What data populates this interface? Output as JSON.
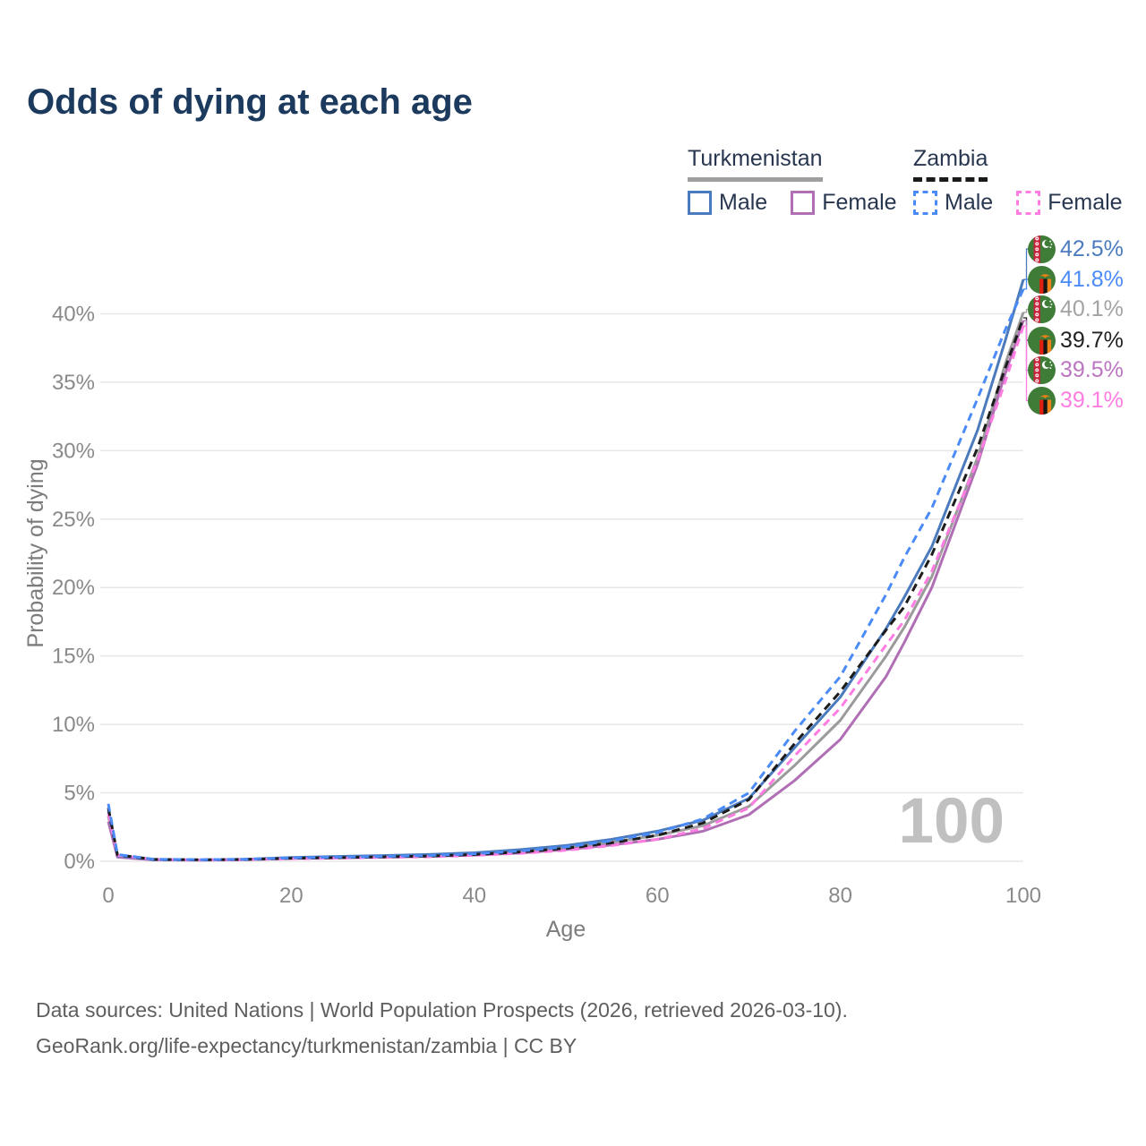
{
  "title": "Odds of dying at each age",
  "legend": {
    "groups": [
      {
        "country": "Turkmenistan",
        "line_style": "solid",
        "underline_color": "#9e9e9e",
        "items": [
          {
            "label": "Male",
            "color": "#4b7bbd",
            "dashed": false
          },
          {
            "label": "Female",
            "color": "#b06fb4",
            "dashed": false
          }
        ]
      },
      {
        "country": "Zambia",
        "line_style": "dashed",
        "underline_color": "#1a1a1a",
        "items": [
          {
            "label": "Male",
            "color": "#4b8bf7",
            "dashed": true
          },
          {
            "label": "Female",
            "color": "#ff7de2",
            "dashed": true
          }
        ]
      }
    ]
  },
  "chart_data": {
    "type": "line",
    "title": "Odds of dying at each age",
    "xlabel": "Age",
    "ylabel": "Probability of dying",
    "xlim": [
      0,
      100
    ],
    "ylim": [
      0,
      45
    ],
    "xticks": [
      0,
      20,
      40,
      60,
      80,
      100
    ],
    "yticks": [
      0,
      5,
      10,
      15,
      20,
      25,
      30,
      35,
      40
    ],
    "ytick_labels": [
      "0%",
      "5%",
      "10%",
      "15%",
      "20%",
      "25%",
      "30%",
      "35%",
      "40%"
    ],
    "grid": "horizontal",
    "legend_position": "top-right",
    "watermark": "100",
    "x": [
      0,
      1,
      5,
      10,
      15,
      20,
      25,
      30,
      35,
      40,
      45,
      50,
      55,
      60,
      65,
      70,
      75,
      80,
      85,
      87,
      90,
      95,
      98,
      100
    ],
    "series": [
      {
        "name": "Turkmenistan",
        "sex": "all",
        "color": "#9b9b9b",
        "dashed": false,
        "values": [
          3.3,
          0.35,
          0.11,
          0.09,
          0.13,
          0.24,
          0.3,
          0.36,
          0.43,
          0.53,
          0.72,
          1.0,
          1.4,
          1.9,
          2.6,
          4.0,
          7.0,
          10.3,
          15.0,
          17.1,
          20.8,
          29.5,
          36.3,
          40.1
        ]
      },
      {
        "name": "Turkmenistan Female",
        "sex": "female",
        "color": "#b06fb4",
        "dashed": false,
        "values": [
          2.9,
          0.3,
          0.1,
          0.08,
          0.11,
          0.2,
          0.25,
          0.3,
          0.36,
          0.45,
          0.6,
          0.85,
          1.2,
          1.6,
          2.2,
          3.4,
          5.9,
          8.9,
          13.5,
          16.0,
          20.0,
          29.0,
          35.6,
          39.5
        ]
      },
      {
        "name": "Turkmenistan Male",
        "sex": "male",
        "color": "#4b7bbd",
        "dashed": false,
        "values": [
          3.7,
          0.4,
          0.12,
          0.1,
          0.15,
          0.28,
          0.35,
          0.42,
          0.5,
          0.62,
          0.85,
          1.15,
          1.6,
          2.2,
          3.0,
          4.6,
          8.3,
          12.0,
          17.0,
          19.3,
          23.0,
          31.5,
          38.0,
          42.5
        ]
      },
      {
        "name": "Zambia Female",
        "sex": "female",
        "color": "#ff7de2",
        "dashed": true,
        "values": [
          3.5,
          0.44,
          0.13,
          0.1,
          0.13,
          0.19,
          0.23,
          0.28,
          0.33,
          0.43,
          0.58,
          0.8,
          1.15,
          1.6,
          2.4,
          3.9,
          7.7,
          11.2,
          15.8,
          17.6,
          21.2,
          29.3,
          35.0,
          39.1
        ]
      },
      {
        "name": "Zambia",
        "sex": "all",
        "color": "#1c1c1c",
        "dashed": true,
        "values": [
          3.9,
          0.47,
          0.14,
          0.11,
          0.14,
          0.22,
          0.27,
          0.32,
          0.38,
          0.5,
          0.68,
          0.95,
          1.35,
          1.9,
          2.8,
          4.5,
          8.6,
          12.4,
          16.9,
          18.6,
          22.4,
          30.2,
          36.0,
          39.7
        ]
      },
      {
        "name": "Zambia Male",
        "sex": "male",
        "color": "#4b8bf7",
        "dashed": true,
        "values": [
          4.2,
          0.5,
          0.15,
          0.12,
          0.15,
          0.25,
          0.3,
          0.35,
          0.42,
          0.55,
          0.75,
          1.05,
          1.5,
          2.1,
          3.1,
          5.0,
          9.5,
          13.5,
          19.5,
          22.2,
          25.8,
          33.8,
          38.8,
          41.8
        ]
      }
    ],
    "end_labels": [
      {
        "value": "42.5%",
        "y_end": 42.5,
        "color": "#4b7bbd",
        "flag": "turkmenistan",
        "series": "Turkmenistan Male"
      },
      {
        "value": "41.8%",
        "y_end": 41.8,
        "color": "#4b8bf7",
        "flag": "zambia",
        "series": "Zambia Male"
      },
      {
        "value": "40.1%",
        "y_end": 40.1,
        "color": "#a3a3a3",
        "flag": "turkmenistan",
        "series": "Turkmenistan"
      },
      {
        "value": "39.7%",
        "y_end": 39.7,
        "color": "#212121",
        "flag": "zambia",
        "series": "Zambia"
      },
      {
        "value": "39.5%",
        "y_end": 39.5,
        "color": "#bb76c0",
        "flag": "turkmenistan",
        "series": "Turkmenistan Female"
      },
      {
        "value": "39.1%",
        "y_end": 39.1,
        "color": "#ff7de2",
        "flag": "zambia",
        "series": "Zambia Female"
      }
    ]
  },
  "footer": {
    "line1": "Data sources: United Nations | World Population Prospects (2026, retrieved 2026-03-10).",
    "line2": "GeoRank.org/life-expectancy/turkmenistan/zambia | CC BY"
  }
}
